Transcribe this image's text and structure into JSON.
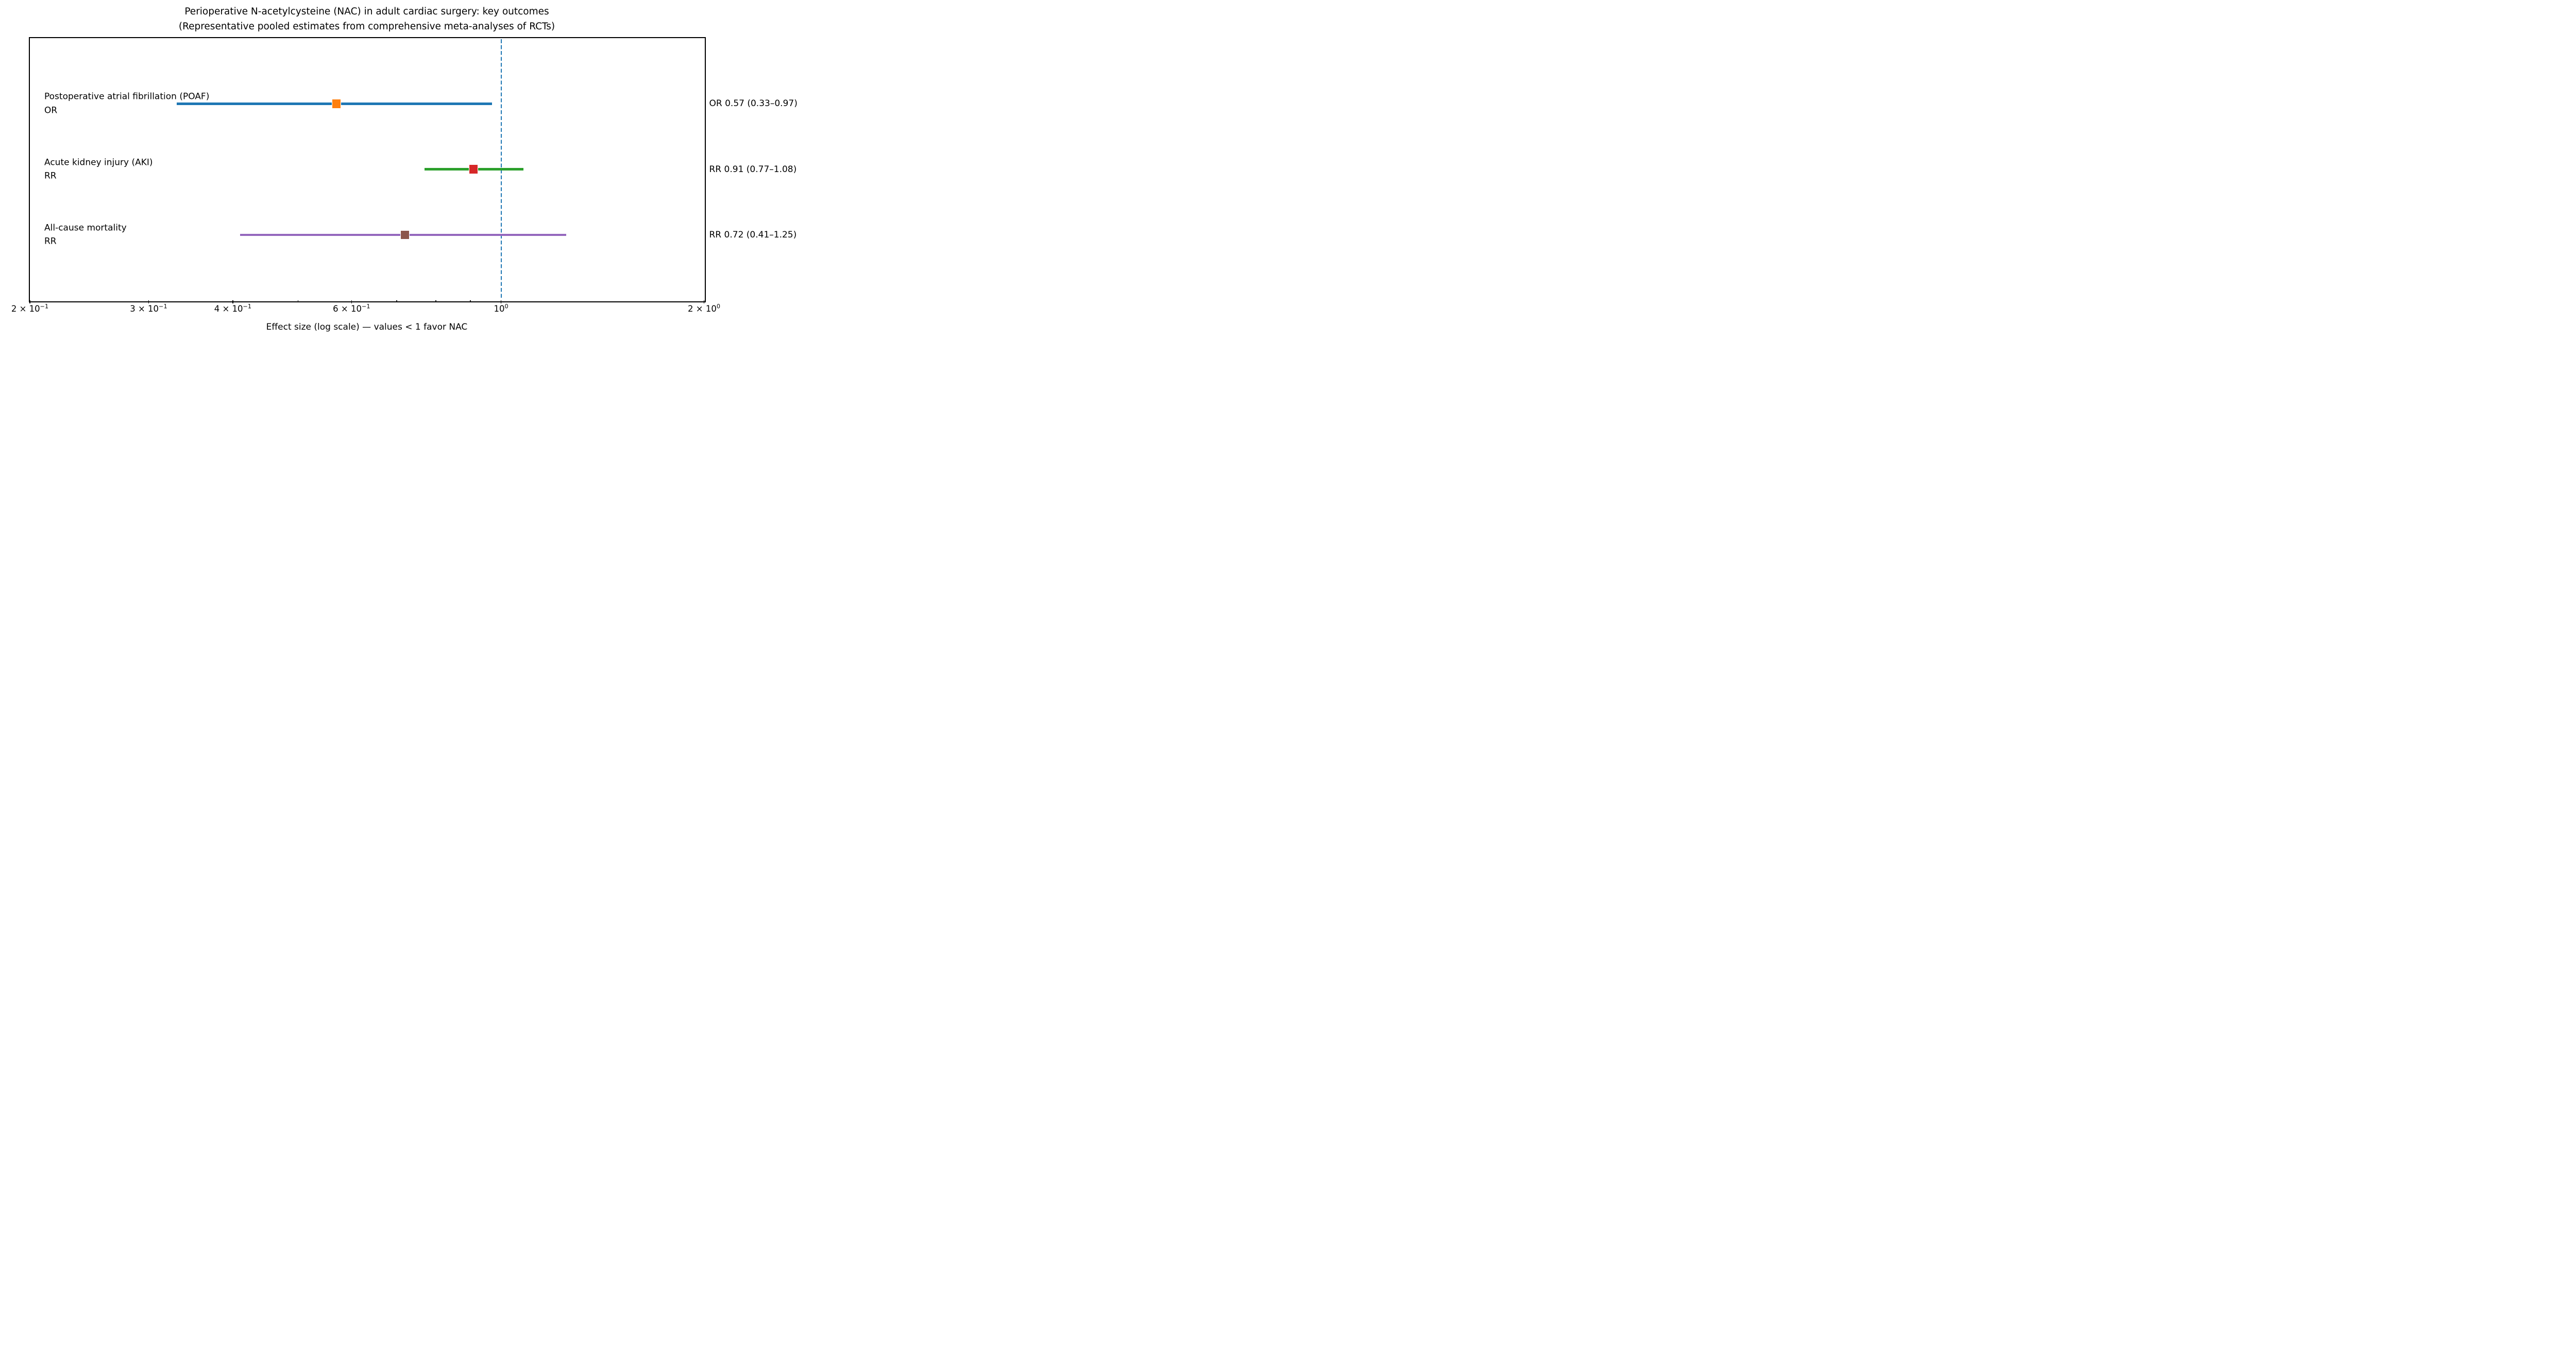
{
  "title": {
    "line1": "Perioperative N-acetylcysteine (NAC) in adult cardiac surgery: key outcomes",
    "line2": "(Representative pooled estimates from comprehensive meta-analyses of RCTs)"
  },
  "xlabel": "Effect size (log scale) — values < 1 favor NAC",
  "colors": {
    "reference_line": "#1f77b4",
    "axis": "#000000",
    "text": "#000000",
    "background": "#ffffff"
  },
  "chart_data": {
    "type": "scatter",
    "subtype": "forest-plot",
    "x_scale": "log",
    "xlim": [
      0.2,
      2.0
    ],
    "grid": false,
    "legend": "none",
    "reference_line": {
      "value": 1.0,
      "style": "dashed",
      "color": "#1f77b4"
    },
    "rows": [
      {
        "outcome": "Postoperative atrial fibrillation (POAF)",
        "measure": "OR",
        "estimate": 0.57,
        "ci_low": 0.33,
        "ci_high": 0.97,
        "annotation": "OR 0.57 (0.33–0.97)",
        "line_color": "#1f77b4",
        "marker_color": "#ff7f0e"
      },
      {
        "outcome": "Acute kidney injury (AKI)",
        "measure": "RR",
        "estimate": 0.91,
        "ci_low": 0.77,
        "ci_high": 1.08,
        "annotation": "RR 0.91 (0.77–1.08)",
        "line_color": "#2ca02c",
        "marker_color": "#d62728"
      },
      {
        "outcome": "All-cause mortality",
        "measure": "RR",
        "estimate": 0.72,
        "ci_low": 0.41,
        "ci_high": 1.25,
        "annotation": "RR 0.72 (0.41–1.25)",
        "line_color": "#9467bd",
        "marker_color": "#8c564b"
      }
    ],
    "x_ticks_major": [
      {
        "value": 0.2,
        "base": "2 × 10",
        "exp": "−1"
      },
      {
        "value": 0.3,
        "base": "3 × 10",
        "exp": "−1"
      },
      {
        "value": 0.4,
        "base": "4 × 10",
        "exp": "−1"
      },
      {
        "value": 0.6,
        "base": "6 × 10",
        "exp": "−1"
      },
      {
        "value": 1.0,
        "base": "10",
        "exp": "0"
      },
      {
        "value": 2.0,
        "base": "2 × 10",
        "exp": "0"
      }
    ],
    "x_ticks_minor": [
      0.5,
      0.7,
      0.8,
      0.9
    ]
  }
}
